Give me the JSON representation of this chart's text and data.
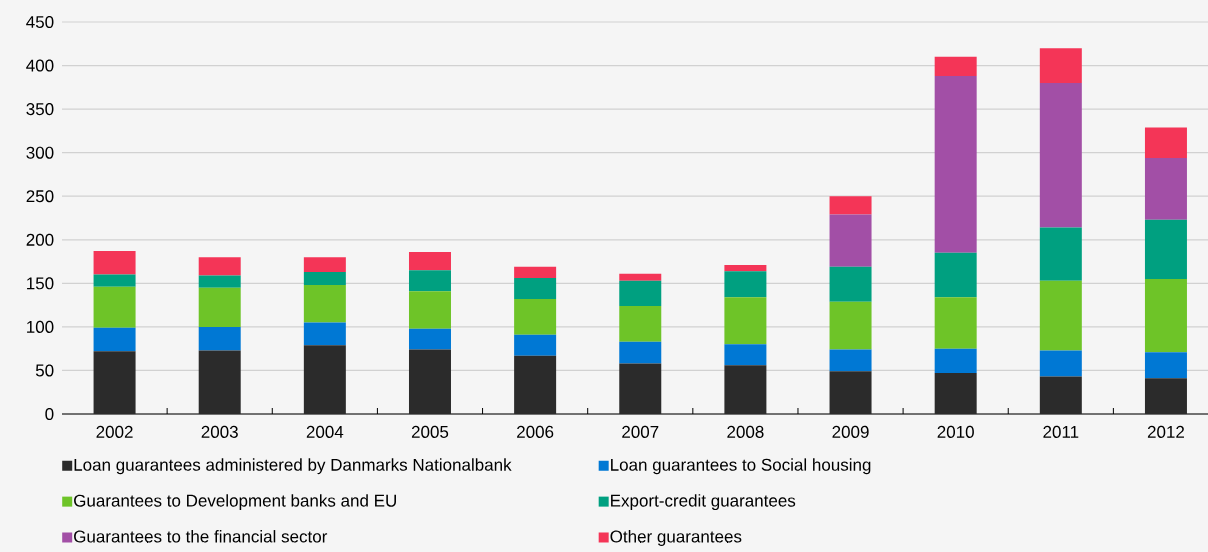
{
  "chart_data": {
    "type": "bar",
    "stacked": true,
    "grid": "y",
    "legend": "bottom",
    "categories": [
      "2002",
      "2003",
      "2004",
      "2005",
      "2006",
      "2007",
      "2008",
      "2009",
      "2010",
      "2011",
      "2012"
    ],
    "ylim": [
      0,
      450
    ],
    "yticks": [
      0,
      50,
      100,
      150,
      200,
      250,
      300,
      350,
      400,
      450
    ],
    "series": [
      {
        "name": "Loan guarantees administered by Danmarks Nationalbank",
        "color": "#2b2b2b",
        "values": [
          72,
          73,
          79,
          74,
          67,
          58,
          56,
          49,
          47,
          43,
          41
        ]
      },
      {
        "name": "Loan guarantees to Social housing",
        "color": "#0078d4",
        "values": [
          27,
          27,
          26,
          24,
          24,
          25,
          24,
          25,
          28,
          30,
          30
        ]
      },
      {
        "name": "Guarantees to Development banks and EU",
        "color": "#6ec428",
        "values": [
          47,
          45,
          43,
          43,
          41,
          41,
          54,
          55,
          59,
          80,
          84
        ]
      },
      {
        "name": "Export-credit guarantees",
        "color": "#00a080",
        "values": [
          14,
          14,
          15,
          24,
          24,
          29,
          30,
          40,
          51,
          61,
          68
        ]
      },
      {
        "name": "Guarantees to the financial sector",
        "color": "#a24fa6",
        "values": [
          0,
          0,
          0,
          0,
          0,
          0,
          0,
          60,
          203,
          166,
          71
        ]
      },
      {
        "name": "Other guarantees",
        "color": "#f43557",
        "values": [
          27,
          21,
          17,
          21,
          13,
          8,
          7,
          21,
          22,
          40,
          35
        ]
      }
    ]
  }
}
